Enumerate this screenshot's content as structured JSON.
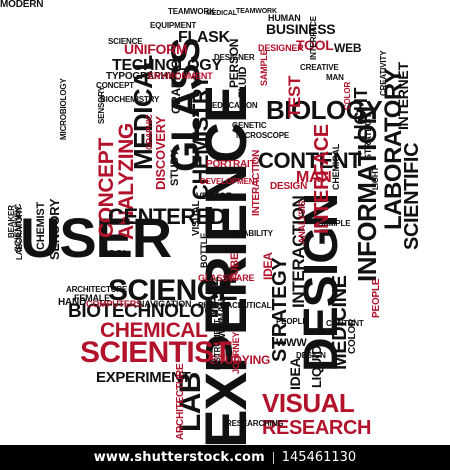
{
  "words": [
    {
      "t": "USER",
      "c": "k"
    },
    {
      "t": "EXPERIENCE",
      "c": "k"
    },
    {
      "t": "DESIGN",
      "c": "k"
    },
    {
      "t": "SCIENCE",
      "c": "k"
    },
    {
      "t": "BIOTECHNOLOGY",
      "c": "k"
    },
    {
      "t": "SCIENTIST",
      "c": "r"
    },
    {
      "t": "CHEMICAL",
      "c": "r"
    },
    {
      "t": "EXPERIMENT",
      "c": "k"
    },
    {
      "t": "LAB",
      "c": "k"
    },
    {
      "t": "GLASS",
      "c": "k"
    },
    {
      "t": "MEDICAL",
      "c": "k"
    },
    {
      "t": "CHEMISTRY",
      "c": "k"
    },
    {
      "t": "CONCEPT",
      "c": "r"
    },
    {
      "t": "ANALYZING",
      "c": "r"
    },
    {
      "t": "CENTERED",
      "c": "k"
    },
    {
      "t": "SENSORY",
      "c": "k"
    },
    {
      "t": "BIOLOGY",
      "c": "k"
    },
    {
      "t": "CONTENT",
      "c": "k"
    },
    {
      "t": "LABORATORY",
      "c": "k"
    },
    {
      "t": "INFORMATION",
      "c": "k"
    },
    {
      "t": "SCIENTIFIC",
      "c": "k"
    },
    {
      "t": "MEDICINE",
      "c": "k"
    },
    {
      "t": "STRATEGY",
      "c": "k"
    },
    {
      "t": "INTERACTION",
      "c": "k"
    },
    {
      "t": "VISUAL",
      "c": "r"
    },
    {
      "t": "RESEARCH",
      "c": "r"
    },
    {
      "t": "MAN",
      "c": "r"
    },
    {
      "t": "TEST",
      "c": "r"
    },
    {
      "t": "TECHNOLOGY",
      "c": "k"
    },
    {
      "t": "UNIFORM",
      "c": "r"
    },
    {
      "t": "FLASK",
      "c": "k"
    },
    {
      "t": "BUSINESS",
      "c": "k"
    },
    {
      "t": "TOOL",
      "c": "r"
    },
    {
      "t": "WEB",
      "c": "k"
    },
    {
      "t": "TYPOGRAPHY",
      "c": "k"
    },
    {
      "t": "STUDYING",
      "c": "r"
    },
    {
      "t": "JOURNEY",
      "c": "r"
    },
    {
      "t": "ARCHITECTURE",
      "c": "r"
    },
    {
      "t": "GLASSWARE",
      "c": "r"
    },
    {
      "t": "PORTRAIT",
      "c": "r"
    },
    {
      "t": "MALE",
      "c": "k"
    },
    {
      "t": "WOMAN",
      "c": "k"
    },
    {
      "t": "WWW",
      "c": "k"
    },
    {
      "t": "IDEA",
      "c": "k"
    },
    {
      "t": "LIQUID",
      "c": "k"
    },
    {
      "t": "HAND",
      "c": "k"
    },
    {
      "t": "COMPUTERS",
      "c": "r"
    },
    {
      "t": "NAVIGATION",
      "c": "k"
    },
    {
      "t": "CHEMIST",
      "c": "k"
    },
    {
      "t": "PHARMACEUTICAL",
      "c": "k"
    },
    {
      "t": "USABILITY",
      "c": "k"
    },
    {
      "t": "TUBE",
      "c": "r"
    },
    {
      "t": "COLOR",
      "c": "k"
    },
    {
      "t": "PEOPLE",
      "c": "r"
    },
    {
      "t": "INTERFACE",
      "c": "r"
    },
    {
      "t": "DISCOVERY",
      "c": "r"
    },
    {
      "t": "VECTOR",
      "c": "k"
    },
    {
      "t": "LIGHT",
      "c": "k"
    },
    {
      "t": "GRAPHIC",
      "c": "k"
    },
    {
      "t": "HUMAN",
      "c": "k"
    },
    {
      "t": "TEAMWORK",
      "c": "k"
    },
    {
      "t": "EQUIPMENT",
      "c": "k"
    },
    {
      "t": "MEDICAL",
      "c": "k"
    },
    {
      "t": "INTERNET",
      "c": "k"
    },
    {
      "t": "SCIENCE",
      "c": "k"
    },
    {
      "t": "DESIGNER",
      "c": "r"
    },
    {
      "t": "SAMPLE",
      "c": "r"
    },
    {
      "t": "PERSON",
      "c": "k"
    },
    {
      "t": "FLUID",
      "c": "k"
    },
    {
      "t": "TOOL",
      "c": "k"
    },
    {
      "t": "VISUAL",
      "c": "k"
    },
    {
      "t": "BOTTLE",
      "c": "k"
    },
    {
      "t": "FEMALE",
      "c": "k"
    },
    {
      "t": "ANALYSIS",
      "c": "r"
    },
    {
      "t": "CREATIVITY",
      "c": "k"
    },
    {
      "t": "MICROSCOPE",
      "c": "k"
    },
    {
      "t": "GENETIC",
      "c": "k"
    },
    {
      "t": "EDUCATION",
      "c": "k"
    },
    {
      "t": "ENVIRONMENT",
      "c": "r"
    },
    {
      "t": "SENSORY",
      "c": "k"
    },
    {
      "t": "STUDY",
      "c": "k"
    },
    {
      "t": "DESIGN",
      "c": "r"
    },
    {
      "t": "IDEA",
      "c": "r"
    },
    {
      "t": "RESEARCHING",
      "c": "k"
    },
    {
      "t": "INSTRUMENT",
      "c": "k"
    },
    {
      "t": "BEAKER",
      "c": "k"
    },
    {
      "t": "CREATIVE",
      "c": "k"
    },
    {
      "t": "SCIENTIFIC",
      "c": "k"
    },
    {
      "t": "TEAMWORK",
      "c": "k"
    },
    {
      "t": "MICROBIOLOGY",
      "c": "k"
    },
    {
      "t": "ARCHITECTURE",
      "c": "k"
    },
    {
      "t": "LABORATORY",
      "c": "k"
    },
    {
      "t": "GRAPHIC",
      "c": "r"
    },
    {
      "t": "PEOPLE",
      "c": "k"
    },
    {
      "t": "DEVELOPMENT",
      "c": "r"
    },
    {
      "t": "CONCEPT",
      "c": "k"
    },
    {
      "t": "INTERACTION",
      "c": "r"
    },
    {
      "t": "CONTENT",
      "c": "k"
    },
    {
      "t": "DESIGN",
      "c": "k"
    },
    {
      "t": "DESIGNER",
      "c": "k"
    },
    {
      "t": "COLOR",
      "c": "r"
    },
    {
      "t": "LIGHT",
      "c": "k"
    },
    {
      "t": "SAMPLE",
      "c": "k"
    },
    {
      "t": "INTERFACE",
      "c": "k"
    },
    {
      "t": "STRATEGY",
      "c": "k"
    },
    {
      "t": "BIOCHEMISTRY",
      "c": "k"
    },
    {
      "t": "CHEMICAL",
      "c": "k"
    },
    {
      "t": "MAN",
      "c": "k"
    },
    {
      "t": "MODERN",
      "c": "k"
    }
  ],
  "footer": {
    "url": "www.shutterstock.com",
    "id": "145461130"
  }
}
